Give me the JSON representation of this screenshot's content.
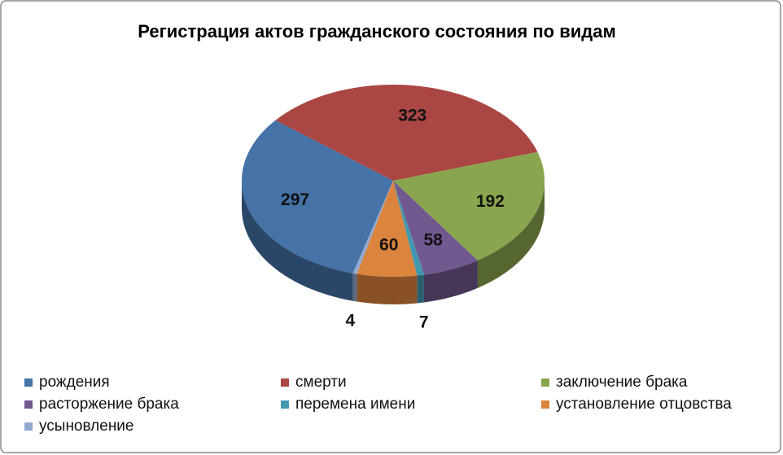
{
  "chart_data": {
    "type": "pie",
    "title": "Регистрация актов гражданского состояния по видам",
    "categories": [
      "рождения",
      "смерти",
      "заключение брака",
      "расторжение брака",
      "перемена имени",
      "установление отцовства",
      "усыновление"
    ],
    "values": [
      297,
      323,
      192,
      58,
      7,
      60,
      4
    ],
    "colors": [
      "#4572a7",
      "#aa4643",
      "#89a54e",
      "#71588f",
      "#4198af",
      "#db843d",
      "#93a9cf"
    ],
    "legend": "bottom"
  }
}
